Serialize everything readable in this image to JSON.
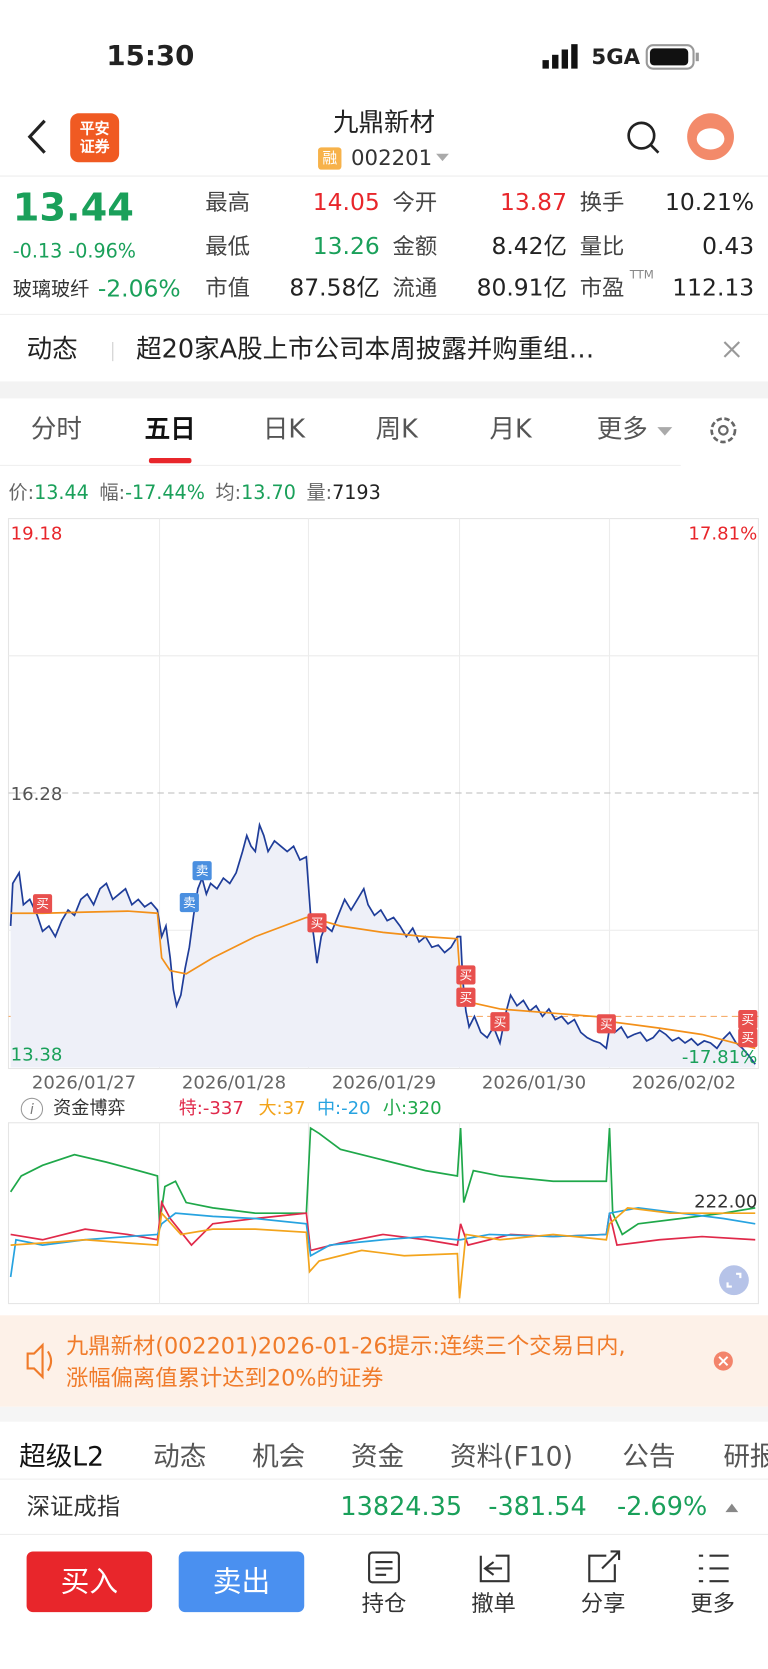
{
  "status_bar": {
    "time": "15:30",
    "network": "5GA"
  },
  "header": {
    "logo": [
      "平安",
      "证券"
    ],
    "title": "九鼎新材",
    "badge": "融",
    "code": "002201"
  },
  "quote": {
    "price": "13.44",
    "change": "-0.13",
    "change_pct": "-0.96%",
    "sector": "玻璃玻纤",
    "sector_change": "-2.06%",
    "stats": [
      [
        {
          "label": "最高",
          "value": "14.05"
        },
        {
          "label": "今开",
          "value": "13.87"
        },
        {
          "label": "换手",
          "value": "10.21%"
        }
      ],
      [
        {
          "label": "最低",
          "value": "13.26"
        },
        {
          "label": "金额",
          "value": "8.42亿"
        },
        {
          "label": "量比",
          "value": "0.43"
        }
      ],
      [
        {
          "label": "市值",
          "value": "87.58亿"
        },
        {
          "label": "流通",
          "value": "80.91亿"
        },
        {
          "label": "市盈",
          "sup": "TTM",
          "value": "112.13"
        }
      ]
    ]
  },
  "news": {
    "label": "动态",
    "text": "超20家A股上市公司本周披露并购重组…"
  },
  "tabs": [
    "分时",
    "五日",
    "日K",
    "周K",
    "月K",
    "更多"
  ],
  "chart_info": [
    {
      "label": "价:",
      "value": "13.44"
    },
    {
      "label": "幅:",
      "value": "-17.44%"
    },
    {
      "label": "均:",
      "value": "13.70"
    },
    {
      "label": "量:",
      "value": "7193"
    }
  ],
  "price_chart": {
    "y_top": "19.18",
    "y_mid": "16.28",
    "y_bottom": "13.38",
    "pct_top": "17.81%",
    "pct_bottom": "-17.81%",
    "dates": [
      "2026/01/27",
      "2026/01/28",
      "2026/01/29",
      "2026/01/30",
      "2026/02/02"
    ],
    "buy": "买",
    "sell": "卖"
  },
  "fund_chart": {
    "title": "资金博弈",
    "items": [
      {
        "label": "特:",
        "value": "-337"
      },
      {
        "label": "大:",
        "value": "37"
      },
      {
        "label": "中:",
        "value": "-20"
      },
      {
        "label": "小:",
        "value": "320"
      }
    ],
    "level": "222.00"
  },
  "notice": {
    "lines": [
      "九鼎新材(002201)2026-01-26提示:连续三个交易日内,",
      "涨幅偏离值累计达到20%的证券"
    ]
  },
  "bottom_tabs": [
    "超级L2",
    "动态",
    "机会",
    "资金",
    "资料(F10)",
    "公告",
    "研报"
  ],
  "index": {
    "name": "深证成指",
    "value": "13824.35",
    "change": "-381.54",
    "change_pct": "-2.69%"
  },
  "actions": {
    "buy": "买入",
    "sell": "卖出",
    "items": [
      "持仓",
      "撤单",
      "分享",
      "更多"
    ]
  }
}
